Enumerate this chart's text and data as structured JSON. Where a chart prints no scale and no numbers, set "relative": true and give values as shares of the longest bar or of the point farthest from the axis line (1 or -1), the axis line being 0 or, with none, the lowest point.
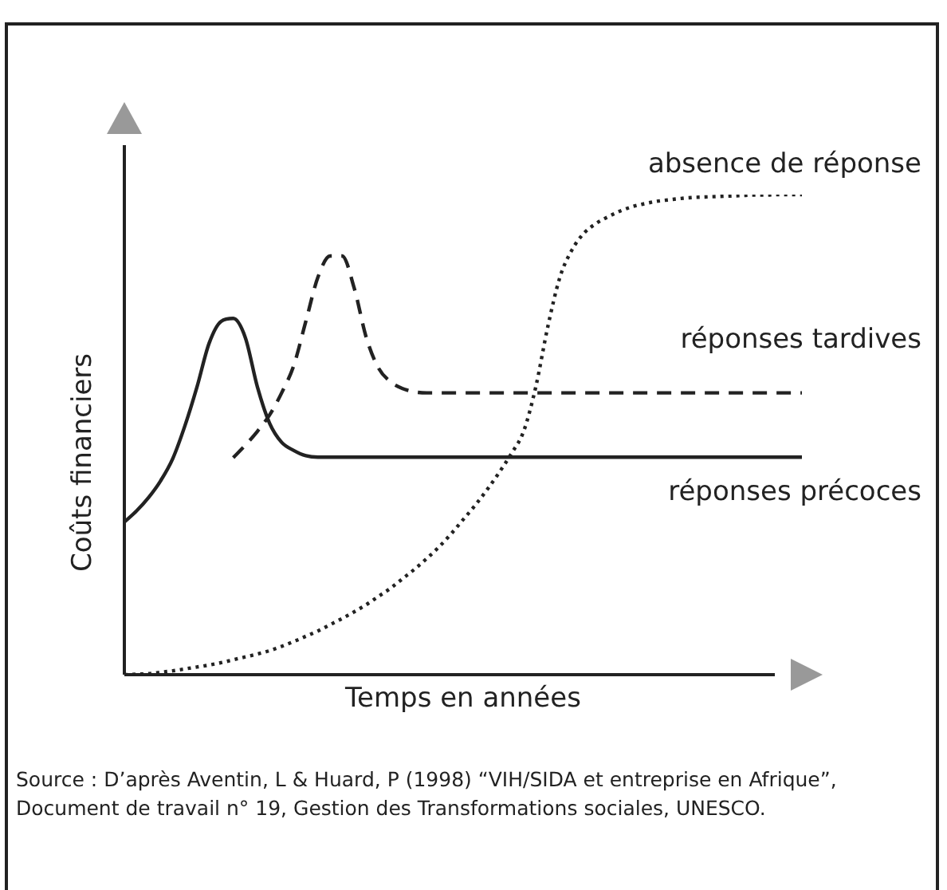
{
  "chart_data": {
    "type": "line",
    "relative": true,
    "xlabel": "Temps en années",
    "ylabel": "Coûts financiers",
    "annotations": [
      "Source : D’après Aventin, L & Huard, P (1998) “VIH/SIDA et entreprise en Afrique”, Document de travail n° 19, Gestion des Transformations sociales, UNESCO."
    ],
    "categories": [
      null,
      null,
      null,
      null,
      null,
      null,
      null,
      null,
      null,
      null,
      null,
      null,
      null,
      null,
      null,
      null,
      null,
      null,
      null,
      null,
      null,
      null,
      null,
      null,
      null,
      null,
      null,
      null,
      null,
      null,
      null,
      null,
      null,
      null,
      null,
      null,
      null,
      null,
      null,
      null,
      null,
      null,
      null,
      null,
      null,
      null,
      null,
      null,
      null,
      null,
      null,
      null,
      null,
      null,
      null,
      null,
      null
    ],
    "legend": false,
    "tick_labels": false,
    "marker": "none",
    "series": [
      {
        "name": "absence de réponse",
        "color": "#222222",
        "line_style": "dotted",
        "values": [
          0,
          0.001,
          0.002,
          0.005,
          0.008,
          0.012,
          0.016,
          0.02,
          0.025,
          0.031,
          0.037,
          0.043,
          0.05,
          0.059,
          0.069,
          0.08,
          0.091,
          0.104,
          0.117,
          0.131,
          0.146,
          0.163,
          0.18,
          0.2,
          0.22,
          0.242,
          0.266,
          0.293,
          0.323,
          0.353,
          0.386,
          0.422,
          0.461,
          0.507,
          0.599,
          0.725,
          0.828,
          0.885,
          0.92,
          0.94,
          0.954,
          0.966,
          0.975,
          0.981,
          0.986,
          0.989,
          0.992,
          0.994,
          0.995,
          0.996,
          0.997,
          0.998,
          0.999,
          0.999,
          1,
          1,
          1
        ]
      },
      {
        "name": "réponses tardives",
        "color": "#222222",
        "line_style": "dashed",
        "values": [
          null,
          null,
          null,
          null,
          null,
          null,
          null,
          null,
          null,
          0.452,
          0.478,
          0.507,
          0.541,
          0.587,
          0.644,
          0.736,
          0.828,
          0.872,
          0.872,
          0.805,
          0.702,
          0.639,
          0.61,
          0.596,
          0.589,
          0.587,
          0.587,
          0.587,
          0.587,
          0.587,
          0.587,
          0.587,
          0.587,
          0.587,
          0.587,
          0.587,
          0.587,
          0.587,
          0.587,
          0.587,
          0.587,
          0.587,
          0.587,
          0.587,
          0.587,
          0.587,
          0.587,
          0.587,
          0.587,
          0.587,
          0.587,
          0.587,
          0.587,
          0.587,
          0.587,
          0.587,
          0.587
        ]
      },
      {
        "name": "réponses précoces",
        "color": "#222222",
        "line_style": "solid",
        "values": [
          0.318,
          0.341,
          0.369,
          0.404,
          0.45,
          0.518,
          0.599,
          0.69,
          0.736,
          0.742,
          0.702,
          0.599,
          0.524,
          0.484,
          0.467,
          0.456,
          0.453,
          0.453,
          0.453,
          0.453,
          0.453,
          0.453,
          0.453,
          0.453,
          0.453,
          0.453,
          0.453,
          0.453,
          0.453,
          0.453,
          0.453,
          0.453,
          0.453,
          0.453,
          0.453,
          0.453,
          0.453,
          0.453,
          0.453,
          0.453,
          0.453,
          0.453,
          0.453,
          0.453,
          0.453,
          0.453,
          0.453,
          0.453,
          0.453,
          0.453,
          0.453,
          0.453,
          0.453,
          0.453,
          0.453,
          0.453,
          0.453
        ]
      }
    ]
  }
}
